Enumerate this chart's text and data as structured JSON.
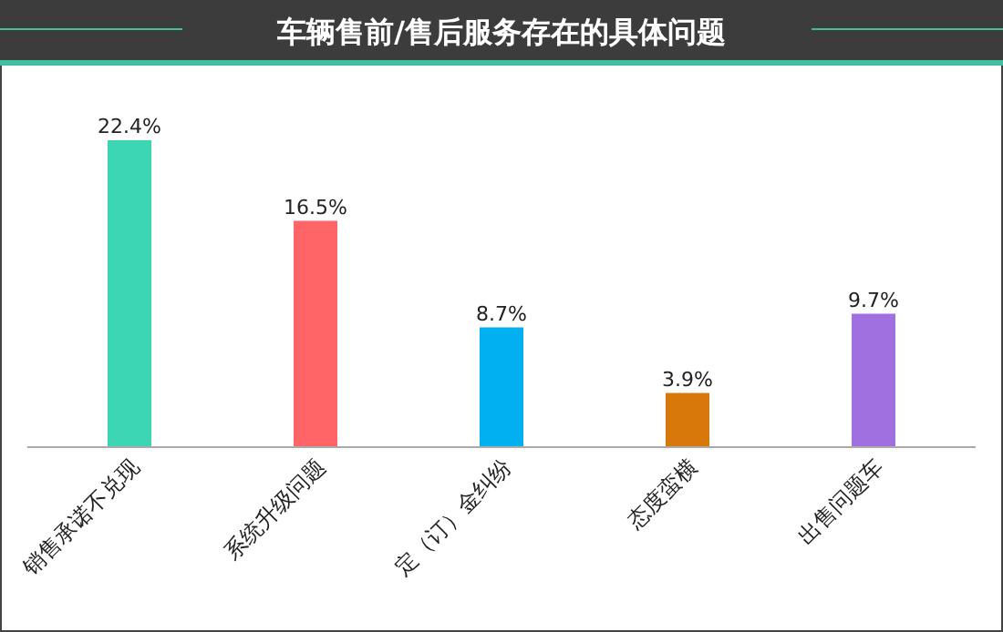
{
  "chart_data": {
    "type": "bar",
    "title": "车辆售前/售后服务存在的具体问题",
    "categories": [
      "销售承诺不兑现",
      "系统升级问题",
      "定（订）金纠纷",
      "态度蛮横",
      "出售问题车"
    ],
    "values": [
      22.4,
      16.5,
      8.7,
      3.9,
      9.7
    ],
    "colors": [
      "#3dd6b5",
      "#ff6466",
      "#00b0f0",
      "#d9780a",
      "#a070e0"
    ],
    "value_labels": [
      "22.4%",
      "16.5%",
      "8.7%",
      "3.9%",
      "9.7%"
    ]
  }
}
